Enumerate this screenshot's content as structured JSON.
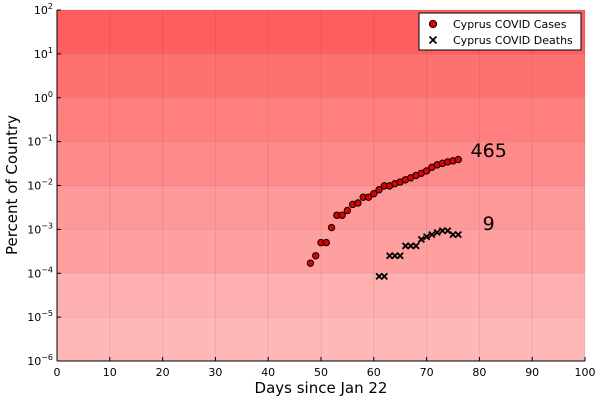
{
  "chart_data": {
    "type": "scatter",
    "xlabel": "Days since Jan 22",
    "ylabel": "Percent of Country",
    "xlim": [
      0,
      100
    ],
    "ylim": [
      1e-06,
      100
    ],
    "yscale": "log",
    "grid": true,
    "legend_position": "top-right",
    "x_ticks": [
      "0",
      "10",
      "20",
      "30",
      "40",
      "50",
      "60",
      "70",
      "80",
      "90",
      "100"
    ],
    "x_tick_values": [
      0,
      10,
      20,
      30,
      40,
      50,
      60,
      70,
      80,
      90,
      100
    ],
    "y_tick_exponents": [
      -6,
      -5,
      -4,
      -3,
      -2,
      -1,
      0,
      1,
      2
    ],
    "background_bands": {
      "colors": [
        "#ffb7b7",
        "#ffb0b0",
        "#ffa0a0",
        "#ff9898",
        "#ff8a8a",
        "#ff7f7f",
        "#ff7070",
        "#ff5e5e"
      ]
    },
    "series": [
      {
        "name": "Cyprus COVID Cases",
        "marker": "circle",
        "color": "#e00000",
        "x": [
          48,
          49,
          50,
          51,
          52,
          53,
          54,
          55,
          56,
          57,
          58,
          59,
          60,
          61,
          62,
          63,
          64,
          65,
          66,
          67,
          68,
          69,
          70,
          71,
          72,
          73,
          74,
          75,
          76
        ],
        "y": [
          0.00017,
          0.00025,
          0.0005,
          0.0005,
          0.0011,
          0.0021,
          0.0021,
          0.0027,
          0.0037,
          0.004,
          0.0054,
          0.0054,
          0.0065,
          0.008,
          0.0098,
          0.0098,
          0.011,
          0.012,
          0.0135,
          0.015,
          0.017,
          0.019,
          0.0215,
          0.026,
          0.0295,
          0.032,
          0.0345,
          0.0365,
          0.039
        ]
      },
      {
        "name": "Cyprus COVID Deaths",
        "marker": "x",
        "color": "#000000",
        "x": [
          61,
          62,
          63,
          64,
          65,
          66,
          67,
          68,
          69,
          70,
          71,
          72,
          73,
          74,
          75,
          76
        ],
        "y": [
          8.5e-05,
          8.5e-05,
          0.00025,
          0.00025,
          0.00025,
          0.00042,
          0.00042,
          0.00042,
          0.00059,
          0.00068,
          0.00076,
          0.00085,
          0.00093,
          0.00093,
          0.00076,
          0.00076
        ]
      }
    ],
    "annotations": [
      {
        "text": "465",
        "x": 81,
        "y": 0.065
      },
      {
        "text": "9",
        "x": 81,
        "y": 0.0014
      }
    ]
  }
}
